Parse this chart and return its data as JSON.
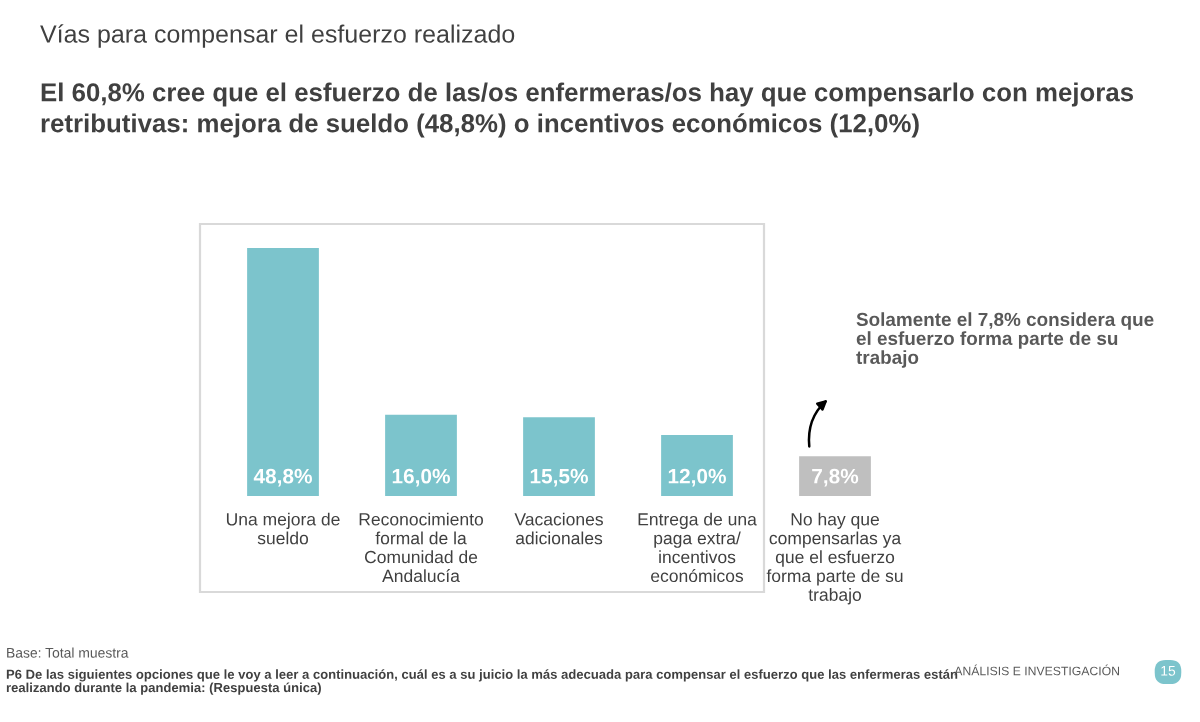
{
  "chart_data": {
    "type": "bar",
    "title": "El 60,8% cree que el esfuerzo de las/os enfermeras/os hay que compensarlo con mejoras\nretributivas: mejora de sueldo (48,8%) o incentivos económicos (12,0%)",
    "subtitle": "Vías para compensar el esfuerzo realizado",
    "categories": [
      "Una mejora de\nsueldo",
      "Reconocimiento\nformal de la\nComunidad de\nAndalucía",
      "Vacaciones\nadicionales",
      "Entrega de una\npaga extra/\nincentivos\neconómicos",
      "No hay que\ncompensarlas ya\nque el esfuerzo\nforma parte de su\ntrabajo"
    ],
    "values": [
      48.8,
      16.0,
      15.5,
      12.0,
      7.8
    ],
    "colors": [
      "#7cc4cc",
      "#7cc4cc",
      "#7cc4cc",
      "#7cc4cc",
      "#bfbfbf"
    ],
    "value_labels": [
      "48,8%",
      "16,0%",
      "15,5%",
      "12,0%",
      "7,8%"
    ],
    "annotations": [
      "Solamente el 7,8% considera que\nel esfuerzo forma parte de su\ntrabajo",
      "Base: Total muestra",
      "P6 De las siguientes opciones que le voy a leer a continuación, cuál es a su juicio la más adecuada para compensar el esfuerzo que las enfermeras están\nrealizando durante la pandemia: (Respuesta única)",
      "ANÁLISIS E INVESTIGACIÓN",
      "15"
    ],
    "grid": false
  }
}
